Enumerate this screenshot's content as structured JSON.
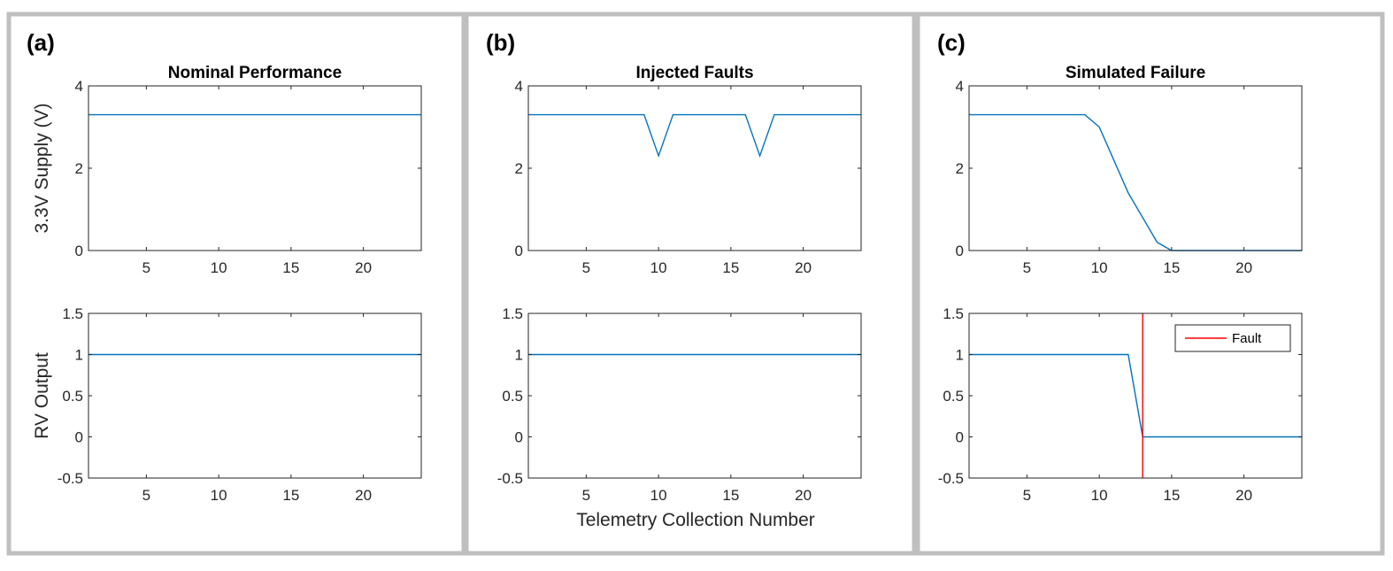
{
  "figure": {
    "colors": {
      "series": "#0072BD",
      "fault": "#FF0000",
      "axes": "#262626",
      "border": "#BFBFBF"
    },
    "xlabel": "Telemetry Collection Number"
  },
  "chart_data": [
    {
      "panel": "(a)",
      "type": "line",
      "title": "Nominal Performance",
      "xlabel": "",
      "ylabel": "3.3V Supply (V)",
      "xlim": [
        1,
        24
      ],
      "ylim": [
        0,
        4
      ],
      "xticks": [
        5,
        10,
        15,
        20
      ],
      "yticks": [
        0,
        2,
        4
      ],
      "series": [
        {
          "x": [
            1,
            24
          ],
          "y": [
            3.3,
            3.3
          ]
        }
      ]
    },
    {
      "panel": "(b)",
      "type": "line",
      "title": "Injected Faults",
      "xlabel": "",
      "ylabel": "",
      "xlim": [
        1,
        24
      ],
      "ylim": [
        0,
        4
      ],
      "xticks": [
        5,
        10,
        15,
        20
      ],
      "yticks": [
        0,
        2,
        4
      ],
      "series": [
        {
          "x": [
            1,
            9,
            10,
            11,
            16,
            17,
            18,
            24
          ],
          "y": [
            3.3,
            3.3,
            2.3,
            3.3,
            3.3,
            2.3,
            3.3,
            3.3
          ]
        }
      ]
    },
    {
      "panel": "(c)",
      "type": "line",
      "title": "Simulated Failure",
      "xlabel": "",
      "ylabel": "",
      "xlim": [
        1,
        24
      ],
      "ylim": [
        0,
        4
      ],
      "xticks": [
        5,
        10,
        15,
        20
      ],
      "yticks": [
        0,
        2,
        4
      ],
      "series": [
        {
          "x": [
            1,
            9,
            10,
            11,
            12,
            13,
            14,
            15,
            24
          ],
          "y": [
            3.3,
            3.3,
            3.0,
            2.2,
            1.4,
            0.8,
            0.2,
            0,
            0
          ]
        }
      ]
    },
    {
      "panel": "(a)",
      "type": "line",
      "title": "",
      "xlabel": "",
      "ylabel": "RV Output",
      "xlim": [
        1,
        24
      ],
      "ylim": [
        -0.5,
        1.5
      ],
      "xticks": [
        5,
        10,
        15,
        20
      ],
      "yticks": [
        -0.5,
        0,
        0.5,
        1,
        1.5
      ],
      "series": [
        {
          "x": [
            1,
            24
          ],
          "y": [
            1,
            1
          ]
        }
      ]
    },
    {
      "panel": "(b)",
      "type": "line",
      "title": "",
      "xlabel": "Telemetry Collection Number",
      "ylabel": "",
      "xlim": [
        1,
        24
      ],
      "ylim": [
        -0.5,
        1.5
      ],
      "xticks": [
        5,
        10,
        15,
        20
      ],
      "yticks": [
        -0.5,
        0,
        0.5,
        1,
        1.5
      ],
      "series": [
        {
          "x": [
            1,
            24
          ],
          "y": [
            1,
            1
          ]
        }
      ]
    },
    {
      "panel": "(c)",
      "type": "line",
      "title": "",
      "xlabel": "",
      "ylabel": "",
      "xlim": [
        1,
        24
      ],
      "ylim": [
        -0.5,
        1.5
      ],
      "xticks": [
        5,
        10,
        15,
        20
      ],
      "yticks": [
        -0.5,
        0,
        0.5,
        1,
        1.5
      ],
      "series": [
        {
          "x": [
            1,
            12,
            13,
            24
          ],
          "y": [
            1,
            1,
            0,
            0
          ]
        }
      ],
      "vlines": [
        {
          "name": "Fault",
          "x": 13
        }
      ],
      "legend": {
        "entries": [
          "Fault"
        ],
        "placement": "top-right"
      }
    }
  ]
}
